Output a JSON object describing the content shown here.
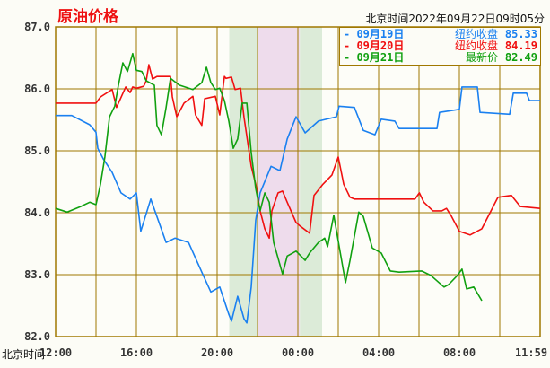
{
  "title": "原油价格",
  "timestamp": "北京时间2022年09月22日09时05分",
  "chart_data": {
    "type": "line",
    "title": "原油价格",
    "xlabel": "北京时间",
    "ylim": [
      82.0,
      87.0
    ],
    "xlim_hours_from_1200": [
      0,
      24
    ],
    "grid": true,
    "legend_position": "top-right",
    "yticks": [
      {
        "value": 87.0,
        "label": "87.0"
      },
      {
        "value": 86.0,
        "label": "86.0"
      },
      {
        "value": 85.0,
        "label": "85.0"
      },
      {
        "value": 84.0,
        "label": "84.0"
      },
      {
        "value": 83.0,
        "label": "83.0"
      },
      {
        "value": 82.0,
        "label": "82.0"
      }
    ],
    "xticks": [
      {
        "hour": 0,
        "label": "12:00"
      },
      {
        "hour": 4,
        "label": "16:00"
      },
      {
        "hour": 8,
        "label": "20:00"
      },
      {
        "hour": 12,
        "label": "00:00"
      },
      {
        "hour": 16,
        "label": "04:00"
      },
      {
        "hour": 20,
        "label": "08:00"
      },
      {
        "hour": 24,
        "label": "11:59"
      }
    ],
    "bands": [
      {
        "from": 8.6,
        "to": 10.0,
        "color": "#dcebd8"
      },
      {
        "from": 10.0,
        "to": 12.1,
        "color": "#eedcec"
      },
      {
        "from": 12.1,
        "to": 13.2,
        "color": "#dcebd8"
      }
    ],
    "series": [
      {
        "name": "09月19日",
        "note": "纽约收盘",
        "value": "85.33",
        "color": "#1a80f0",
        "points": [
          [
            0,
            85.57
          ],
          [
            0.8,
            85.57
          ],
          [
            1.69,
            85.42
          ],
          [
            2.0,
            85.3
          ],
          [
            2.09,
            85.04
          ],
          [
            2.36,
            84.87
          ],
          [
            2.8,
            84.65
          ],
          [
            3.24,
            84.32
          ],
          [
            3.69,
            84.22
          ],
          [
            4.0,
            84.32
          ],
          [
            4.22,
            83.7
          ],
          [
            4.71,
            84.22
          ],
          [
            5.47,
            83.52
          ],
          [
            5.91,
            83.59
          ],
          [
            6.58,
            83.52
          ],
          [
            7.24,
            83.04
          ],
          [
            7.69,
            82.72
          ],
          [
            8.13,
            82.8
          ],
          [
            8.58,
            82.36
          ],
          [
            8.71,
            82.25
          ],
          [
            9.02,
            82.65
          ],
          [
            9.33,
            82.29
          ],
          [
            9.47,
            82.22
          ],
          [
            9.69,
            82.8
          ],
          [
            9.91,
            83.88
          ],
          [
            10.13,
            84.32
          ],
          [
            10.67,
            84.75
          ],
          [
            11.11,
            84.68
          ],
          [
            11.47,
            85.19
          ],
          [
            11.91,
            85.55
          ],
          [
            12.36,
            85.29
          ],
          [
            13.02,
            85.48
          ],
          [
            13.91,
            85.55
          ],
          [
            14.04,
            85.72
          ],
          [
            14.8,
            85.7
          ],
          [
            15.24,
            85.33
          ],
          [
            15.82,
            85.26
          ],
          [
            16.13,
            85.51
          ],
          [
            16.8,
            85.48
          ],
          [
            17.02,
            85.36
          ],
          [
            18.89,
            85.36
          ],
          [
            19.02,
            85.62
          ],
          [
            20.0,
            85.67
          ],
          [
            20.13,
            86.03
          ],
          [
            20.89,
            86.03
          ],
          [
            21.02,
            85.62
          ],
          [
            22.49,
            85.59
          ],
          [
            22.67,
            85.93
          ],
          [
            23.33,
            85.93
          ],
          [
            23.47,
            85.81
          ],
          [
            24.0,
            85.81
          ]
        ]
      },
      {
        "name": "09月20日",
        "note": "纽约收盘",
        "value": "84.19",
        "color": "#f01010",
        "points": [
          [
            0,
            85.77
          ],
          [
            2.0,
            85.77
          ],
          [
            2.22,
            85.87
          ],
          [
            2.8,
            85.99
          ],
          [
            3.02,
            85.7
          ],
          [
            3.47,
            86.03
          ],
          [
            3.69,
            85.94
          ],
          [
            3.82,
            86.03
          ],
          [
            4.0,
            86.01
          ],
          [
            4.36,
            86.04
          ],
          [
            4.49,
            86.13
          ],
          [
            4.62,
            86.39
          ],
          [
            4.8,
            86.16
          ],
          [
            5.02,
            86.2
          ],
          [
            5.69,
            86.2
          ],
          [
            5.78,
            85.87
          ],
          [
            6.0,
            85.55
          ],
          [
            6.36,
            85.77
          ],
          [
            6.8,
            85.88
          ],
          [
            6.93,
            85.58
          ],
          [
            7.24,
            85.41
          ],
          [
            7.38,
            85.84
          ],
          [
            7.91,
            85.88
          ],
          [
            8.13,
            85.58
          ],
          [
            8.36,
            86.2
          ],
          [
            8.44,
            86.17
          ],
          [
            8.71,
            86.19
          ],
          [
            8.89,
            85.99
          ],
          [
            9.16,
            86.01
          ],
          [
            9.33,
            85.55
          ],
          [
            9.69,
            84.75
          ],
          [
            9.91,
            84.46
          ],
          [
            10.13,
            84.03
          ],
          [
            10.36,
            83.74
          ],
          [
            10.58,
            83.59
          ],
          [
            10.71,
            84.03
          ],
          [
            11.02,
            84.32
          ],
          [
            11.24,
            84.35
          ],
          [
            11.47,
            84.17
          ],
          [
            11.91,
            83.84
          ],
          [
            12.13,
            83.78
          ],
          [
            12.58,
            83.67
          ],
          [
            12.8,
            84.28
          ],
          [
            13.24,
            84.46
          ],
          [
            13.69,
            84.61
          ],
          [
            14.0,
            84.9
          ],
          [
            14.27,
            84.46
          ],
          [
            14.58,
            84.25
          ],
          [
            14.8,
            84.22
          ],
          [
            17.8,
            84.22
          ],
          [
            18.02,
            84.32
          ],
          [
            18.24,
            84.17
          ],
          [
            18.69,
            84.03
          ],
          [
            19.13,
            84.03
          ],
          [
            19.36,
            84.07
          ],
          [
            19.58,
            83.96
          ],
          [
            20.0,
            83.7
          ],
          [
            20.53,
            83.64
          ],
          [
            21.11,
            83.74
          ],
          [
            21.91,
            84.25
          ],
          [
            22.58,
            84.28
          ],
          [
            23.02,
            84.1
          ],
          [
            24.0,
            84.07
          ]
        ]
      },
      {
        "name": "09月21日",
        "note": "最新价",
        "value": "82.49",
        "color": "#10a010",
        "points": [
          [
            0,
            84.07
          ],
          [
            0.58,
            84.01
          ],
          [
            1.24,
            84.1
          ],
          [
            1.69,
            84.17
          ],
          [
            2.0,
            84.13
          ],
          [
            2.22,
            84.46
          ],
          [
            2.44,
            84.9
          ],
          [
            2.67,
            85.55
          ],
          [
            2.93,
            85.72
          ],
          [
            3.11,
            86.06
          ],
          [
            3.33,
            86.42
          ],
          [
            3.56,
            86.28
          ],
          [
            3.82,
            86.57
          ],
          [
            4.0,
            86.3
          ],
          [
            4.27,
            86.28
          ],
          [
            4.49,
            86.13
          ],
          [
            4.89,
            86.06
          ],
          [
            5.02,
            85.41
          ],
          [
            5.24,
            85.26
          ],
          [
            5.47,
            85.7
          ],
          [
            5.69,
            86.17
          ],
          [
            6.13,
            86.06
          ],
          [
            6.8,
            85.99
          ],
          [
            7.24,
            86.1
          ],
          [
            7.47,
            86.35
          ],
          [
            7.69,
            86.1
          ],
          [
            7.91,
            85.99
          ],
          [
            8.13,
            86.01
          ],
          [
            8.36,
            85.81
          ],
          [
            8.58,
            85.48
          ],
          [
            8.8,
            85.04
          ],
          [
            9.02,
            85.19
          ],
          [
            9.24,
            85.77
          ],
          [
            9.47,
            85.77
          ],
          [
            9.69,
            84.97
          ],
          [
            9.91,
            84.39
          ],
          [
            10.13,
            84.03
          ],
          [
            10.36,
            84.32
          ],
          [
            10.58,
            84.17
          ],
          [
            10.8,
            83.52
          ],
          [
            11.24,
            83.01
          ],
          [
            11.47,
            83.3
          ],
          [
            11.91,
            83.38
          ],
          [
            12.36,
            83.23
          ],
          [
            12.58,
            83.35
          ],
          [
            13.02,
            83.52
          ],
          [
            13.33,
            83.59
          ],
          [
            13.47,
            83.45
          ],
          [
            13.78,
            83.96
          ],
          [
            14.13,
            83.3
          ],
          [
            14.36,
            82.87
          ],
          [
            14.58,
            83.23
          ],
          [
            15.02,
            84.01
          ],
          [
            15.24,
            83.94
          ],
          [
            15.69,
            83.43
          ],
          [
            16.13,
            83.35
          ],
          [
            16.58,
            83.06
          ],
          [
            17.02,
            83.04
          ],
          [
            18.13,
            83.06
          ],
          [
            18.58,
            82.99
          ],
          [
            19.24,
            82.8
          ],
          [
            19.47,
            82.84
          ],
          [
            19.91,
            82.99
          ],
          [
            20.13,
            83.09
          ],
          [
            20.36,
            82.77
          ],
          [
            20.71,
            82.8
          ],
          [
            21.11,
            82.58
          ]
        ]
      }
    ]
  }
}
